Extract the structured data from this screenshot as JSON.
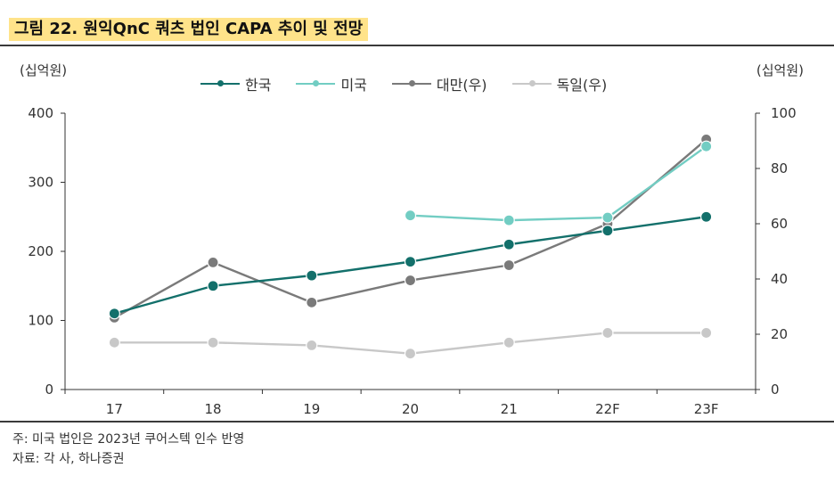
{
  "title": "그림 22. 원익QnC 쿼츠 법인 CAPA 추이 및 전망",
  "unit_left": "(십억원)",
  "unit_right": "(십억원)",
  "note": "주: 미국 법인은 2023년 쿠어스텍 인수 반영",
  "source": "자료: 각 사, 하나증권",
  "chart_data": {
    "type": "line",
    "categories": [
      "17",
      "18",
      "19",
      "20",
      "21",
      "22F",
      "23F"
    ],
    "y_left": {
      "min": 0,
      "max": 400,
      "ticks": [
        0,
        100,
        200,
        300,
        400
      ]
    },
    "y_right": {
      "min": 0,
      "max": 100,
      "ticks": [
        0,
        20,
        40,
        60,
        80,
        100
      ]
    },
    "series": [
      {
        "name": "한국",
        "axis": "left",
        "color": "#13706b",
        "values": [
          110,
          150,
          165,
          185,
          210,
          230,
          250
        ]
      },
      {
        "name": "미국",
        "axis": "left",
        "color": "#72cdc3",
        "values": [
          null,
          null,
          null,
          252,
          245,
          249,
          352
        ]
      },
      {
        "name": "대만(우)",
        "axis": "right",
        "color": "#7a7a7a",
        "values": [
          26,
          46,
          31.5,
          39.5,
          45,
          60,
          90.5
        ]
      },
      {
        "name": "독일(우)",
        "axis": "right",
        "color": "#c8c8c8",
        "values": [
          17,
          17,
          16,
          13,
          17,
          20.5,
          20.5
        ]
      }
    ]
  }
}
